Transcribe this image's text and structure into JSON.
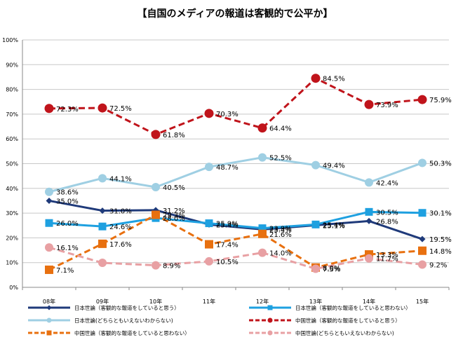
{
  "chart_data": {
    "type": "line",
    "title": "【自国のメディアの報道は客観的で公平か】",
    "xlabel": "",
    "ylabel": "",
    "categories": [
      "08年",
      "09年",
      "10年",
      "11年",
      "12年",
      "13年",
      "14年",
      "15年"
    ],
    "ylim": [
      0,
      100
    ],
    "yticks": [
      "0%",
      "10%",
      "20%",
      "30%",
      "40%",
      "50%",
      "60%",
      "70%",
      "80%",
      "90%",
      "100%"
    ],
    "grid": true,
    "legend_position": "bottom",
    "series": [
      {
        "name": "日本世論（客観的な報道をしていると思う）",
        "color": "#1f3a7a",
        "dash": false,
        "marker": "diamond",
        "values": [
          35.0,
          31.0,
          31.2,
          25.4,
          23.4,
          25.1,
          26.8,
          19.5
        ],
        "labels": [
          "35.0%",
          "31.0%",
          "31.2%",
          "25.4%",
          "23.4%",
          "25.1%",
          "26.8%",
          "19.5%"
        ]
      },
      {
        "name": "日本世論（客観的な報道をしていると思わない）",
        "color": "#1ea0e0",
        "dash": false,
        "marker": "square",
        "values": [
          26.0,
          24.6,
          28.0,
          25.9,
          23.9,
          25.4,
          30.5,
          30.1
        ],
        "labels": [
          "26.0%",
          "24.6%",
          "28.0%",
          "25.9%",
          "23.9%",
          "25.4%",
          "30.5%",
          "30.1%"
        ]
      },
      {
        "name": "日本世論(どちらともいえないわからない)",
        "color": "#9fcfe3",
        "dash": false,
        "marker": "circle",
        "values": [
          38.6,
          44.1,
          40.5,
          48.7,
          52.5,
          49.4,
          42.4,
          50.3
        ],
        "labels": [
          "38.6%",
          "44.1%",
          "40.5%",
          "48.7%",
          "52.5%",
          "49.4%",
          "42.4%",
          "50.3%"
        ]
      },
      {
        "name": "中国世論（客観的な報道をしていると思う）",
        "color": "#c0141b",
        "dash": true,
        "marker": "circle",
        "values": [
          72.3,
          72.5,
          61.8,
          70.3,
          64.4,
          84.5,
          73.9,
          75.9
        ],
        "labels": [
          "72.3%",
          "72.5%",
          "61.8%",
          "70.3%",
          "64.4%",
          "84.5%",
          "73.9%",
          "75.9%"
        ]
      },
      {
        "name": "中国世論（客観的な報道をしていると思わない）",
        "color": "#e8700f",
        "dash": true,
        "marker": "square",
        "values": [
          7.1,
          17.6,
          29.3,
          17.4,
          21.6,
          8.0,
          13.3,
          14.8
        ],
        "labels": [
          "7.1%",
          "17.6%",
          "29.3%",
          "17.4%",
          "21.6%",
          "8.0%",
          "13.3%",
          "14.8%"
        ]
      },
      {
        "name": "中国世論(どちらともいえないわからない)",
        "color": "#e8a0a3",
        "dash": true,
        "marker": "circle",
        "values": [
          16.1,
          9.9,
          8.9,
          10.5,
          14.0,
          7.5,
          11.7,
          9.2
        ],
        "labels": [
          "16.1%",
          "",
          "8.9%",
          "10.5%",
          "14.0%",
          "7.5%",
          "11.7%",
          "9.2%"
        ]
      }
    ]
  }
}
